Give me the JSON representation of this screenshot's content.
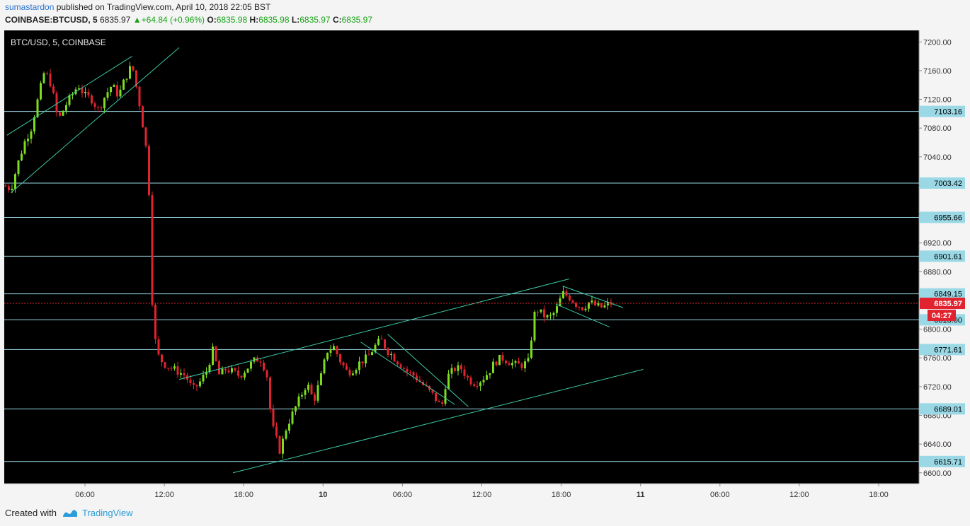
{
  "header": {
    "user": "sumastardon",
    "published_text": "published on TradingView.com, April 10, 2018 22:05 BST",
    "symbol": "COINBASE:BTCUSD, 5",
    "price": "6835.97",
    "change": "+64.84 (+0.96%)",
    "o_label": "O:",
    "o_value": "6835.98",
    "h_label": "H:",
    "h_value": "6835.98",
    "l_label": "L:",
    "l_value": "6835.97",
    "c_label": "C:",
    "c_value": "6835.97"
  },
  "footer": {
    "created_with": "Created with",
    "brand": "TradingView"
  },
  "colors": {
    "background": "#000000",
    "up": "#7ddc1f",
    "down": "#e0232e",
    "level": "#9ad8e6",
    "trend": "#3ec9a7",
    "price_line": "#e0232e"
  },
  "chart_data": {
    "type": "candlestick",
    "title": "BTC/USD, 5, COINBASE",
    "ylim": [
      6585,
      7216
    ],
    "y_ticks": [
      "6600.00",
      "6640.00",
      "6680.00",
      "6720.00",
      "6760.00",
      "6800.00",
      "6840.00",
      "6880.00",
      "6920.00",
      "6960.00",
      "7000.00",
      "7040.00",
      "7080.00",
      "7120.00",
      "7160.00",
      "7200.00"
    ],
    "x_ticks": [
      {
        "label": "06:00",
        "t": 1.2
      },
      {
        "label": "12:00",
        "t": 2.38
      },
      {
        "label": "18:00",
        "t": 3.56
      },
      {
        "label": "10",
        "t": 4.74,
        "bold": true
      },
      {
        "label": "06:00",
        "t": 5.92
      },
      {
        "label": "12:00",
        "t": 7.1
      },
      {
        "label": "18:00",
        "t": 8.28
      },
      {
        "label": "11",
        "t": 9.46,
        "bold": true
      },
      {
        "label": "06:00",
        "t": 10.64
      },
      {
        "label": "12:00",
        "t": 11.82
      },
      {
        "label": "18:00",
        "t": 13.0
      }
    ],
    "horizontal_levels": [
      {
        "price": 7103.16,
        "label": "7103.16"
      },
      {
        "price": 7003.42,
        "label": "7003.42"
      },
      {
        "price": 6955.66,
        "label": "6955.66"
      },
      {
        "price": 6901.61,
        "label": "6901.61"
      },
      {
        "price": 6849.15,
        "label": "6849.15"
      },
      {
        "price": 6813.0,
        "label": "6813.00"
      },
      {
        "price": 6771.61,
        "label": "6771.61"
      },
      {
        "price": 6689.01,
        "label": "6689.01"
      },
      {
        "price": 6615.71,
        "label": "6615.71"
      }
    ],
    "last_price": {
      "price": 6835.97,
      "label": "6835.97",
      "countdown": "04:27"
    },
    "trendlines": [
      {
        "x1": 0.04,
        "y1": 7070,
        "x2": 1.9,
        "y2": 7180
      },
      {
        "x1": 0.1,
        "y1": 6990,
        "x2": 2.6,
        "y2": 7192
      },
      {
        "x1": 2.6,
        "y1": 6730,
        "x2": 8.4,
        "y2": 6870
      },
      {
        "x1": 3.4,
        "y1": 6600,
        "x2": 9.5,
        "y2": 6744
      },
      {
        "x1": 5.3,
        "y1": 6782,
        "x2": 6.7,
        "y2": 6695
      },
      {
        "x1": 5.7,
        "y1": 6793,
        "x2": 6.9,
        "y2": 6692
      },
      {
        "x1": 8.3,
        "y1": 6860,
        "x2": 9.2,
        "y2": 6830
      },
      {
        "x1": 8.2,
        "y1": 6835,
        "x2": 9.0,
        "y2": 6803
      }
    ],
    "price_path": [
      [
        0.0,
        7000
      ],
      [
        0.1,
        6995
      ],
      [
        0.2,
        7030
      ],
      [
        0.3,
        7060
      ],
      [
        0.4,
        7080
      ],
      [
        0.5,
        7120
      ],
      [
        0.6,
        7160
      ],
      [
        0.7,
        7140
      ],
      [
        0.8,
        7090
      ],
      [
        0.9,
        7110
      ],
      [
        1.0,
        7125
      ],
      [
        1.1,
        7140
      ],
      [
        1.2,
        7125
      ],
      [
        1.3,
        7120
      ],
      [
        1.4,
        7105
      ],
      [
        1.5,
        7125
      ],
      [
        1.6,
        7140
      ],
      [
        1.7,
        7125
      ],
      [
        1.8,
        7150
      ],
      [
        1.9,
        7168
      ],
      [
        2.0,
        7120
      ],
      [
        2.05,
        7090
      ],
      [
        2.1,
        7060
      ],
      [
        2.15,
        7000
      ],
      [
        2.18,
        6900
      ],
      [
        2.2,
        6840
      ],
      [
        2.25,
        6780
      ],
      [
        2.3,
        6760
      ],
      [
        2.4,
        6750
      ],
      [
        2.5,
        6745
      ],
      [
        2.6,
        6740
      ],
      [
        2.7,
        6735
      ],
      [
        2.8,
        6715
      ],
      [
        2.9,
        6725
      ],
      [
        3.0,
        6740
      ],
      [
        3.1,
        6770
      ],
      [
        3.2,
        6735
      ],
      [
        3.3,
        6745
      ],
      [
        3.4,
        6740
      ],
      [
        3.5,
        6735
      ],
      [
        3.6,
        6745
      ],
      [
        3.7,
        6755
      ],
      [
        3.8,
        6760
      ],
      [
        3.9,
        6740
      ],
      [
        3.95,
        6690
      ],
      [
        4.0,
        6660
      ],
      [
        4.1,
        6630
      ],
      [
        4.2,
        6665
      ],
      [
        4.3,
        6685
      ],
      [
        4.4,
        6705
      ],
      [
        4.5,
        6725
      ],
      [
        4.6,
        6700
      ],
      [
        4.7,
        6730
      ],
      [
        4.8,
        6770
      ],
      [
        4.9,
        6775
      ],
      [
        5.0,
        6755
      ],
      [
        5.1,
        6740
      ],
      [
        5.2,
        6745
      ],
      [
        5.3,
        6755
      ],
      [
        5.4,
        6760
      ],
      [
        5.5,
        6775
      ],
      [
        5.6,
        6785
      ],
      [
        5.7,
        6770
      ],
      [
        5.8,
        6760
      ],
      [
        5.9,
        6750
      ],
      [
        6.0,
        6740
      ],
      [
        6.1,
        6735
      ],
      [
        6.2,
        6725
      ],
      [
        6.3,
        6715
      ],
      [
        6.4,
        6705
      ],
      [
        6.5,
        6690
      ],
      [
        6.55,
        6720
      ],
      [
        6.6,
        6735
      ],
      [
        6.7,
        6745
      ],
      [
        6.8,
        6745
      ],
      [
        6.9,
        6730
      ],
      [
        7.0,
        6725
      ],
      [
        7.1,
        6730
      ],
      [
        7.2,
        6740
      ],
      [
        7.3,
        6755
      ],
      [
        7.4,
        6760
      ],
      [
        7.5,
        6755
      ],
      [
        7.6,
        6750
      ],
      [
        7.7,
        6750
      ],
      [
        7.8,
        6755
      ],
      [
        7.85,
        6800
      ],
      [
        7.9,
        6830
      ],
      [
        8.0,
        6820
      ],
      [
        8.1,
        6815
      ],
      [
        8.2,
        6825
      ],
      [
        8.3,
        6850
      ],
      [
        8.4,
        6845
      ],
      [
        8.5,
        6835
      ],
      [
        8.6,
        6830
      ],
      [
        8.7,
        6838
      ],
      [
        8.8,
        6832
      ],
      [
        8.9,
        6830
      ],
      [
        9.0,
        6836
      ]
    ]
  }
}
